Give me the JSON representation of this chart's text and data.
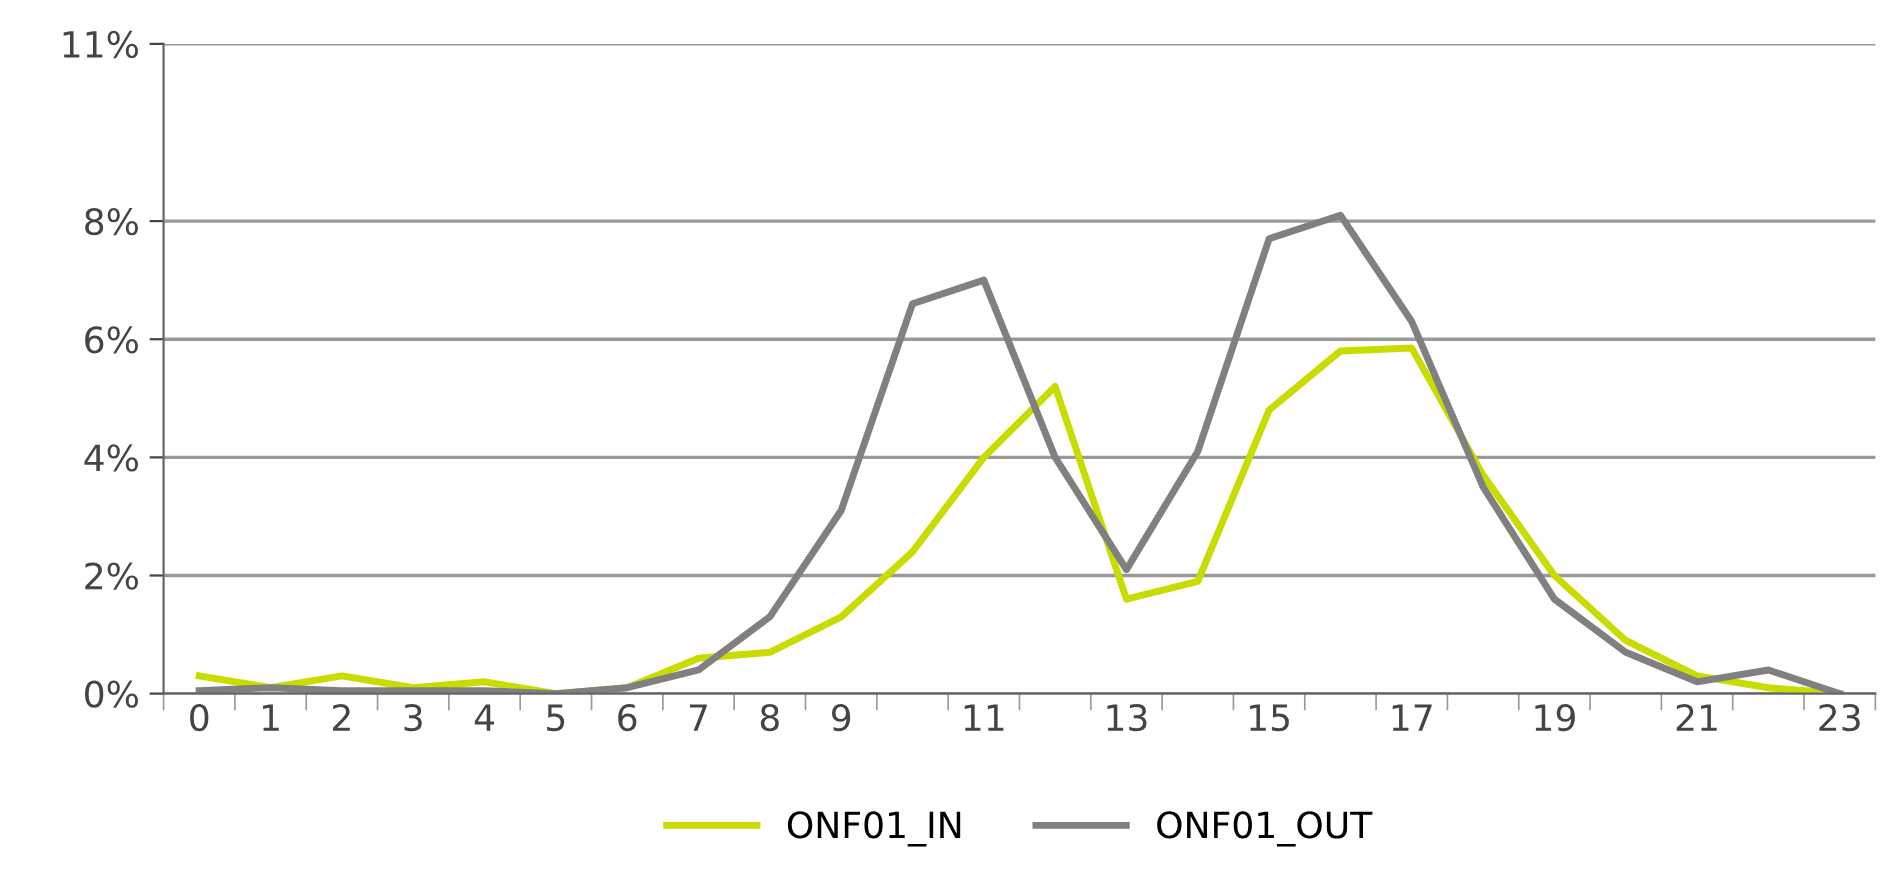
{
  "chart_data": {
    "type": "line",
    "categories": [
      "0",
      "1",
      "2",
      "3",
      "4",
      "5",
      "6",
      "7",
      "8",
      "9",
      null,
      "11",
      null,
      "13",
      null,
      "15",
      null,
      "17",
      null,
      "19",
      null,
      "21",
      null,
      "23"
    ],
    "series": [
      {
        "name": "ONF01_IN",
        "color": "#c8dc00",
        "values": [
          0.3,
          0.1,
          0.3,
          0.1,
          0.2,
          0,
          0.1,
          0.6,
          0.7,
          1.3,
          2.4,
          4.0,
          5.2,
          1.6,
          1.9,
          4.8,
          5.8,
          5.85,
          3.7,
          2.0,
          0.9,
          0.3,
          0.1,
          0
        ]
      },
      {
        "name": "ONF01_OUT",
        "color": "#808080",
        "values": [
          0.05,
          0.1,
          0.05,
          0.05,
          0.05,
          0,
          0.1,
          0.4,
          1.3,
          3.1,
          6.6,
          7.0,
          4.0,
          2.1,
          4.1,
          7.7,
          8.1,
          6.3,
          3.5,
          1.6,
          0.7,
          0.2,
          0.4,
          0
        ]
      }
    ],
    "ylim": [
      0,
      11
    ],
    "yticks": [
      {
        "value": 0,
        "label": "0%"
      },
      {
        "value": 2,
        "label": "2%"
      },
      {
        "value": 4,
        "label": "4%"
      },
      {
        "value": 6,
        "label": "6%"
      },
      {
        "value": 8,
        "label": "8%"
      },
      {
        "value": 11,
        "label": "11%"
      }
    ],
    "grid": "y",
    "legend": "bottom",
    "marker": "none",
    "line_style": "solid"
  }
}
